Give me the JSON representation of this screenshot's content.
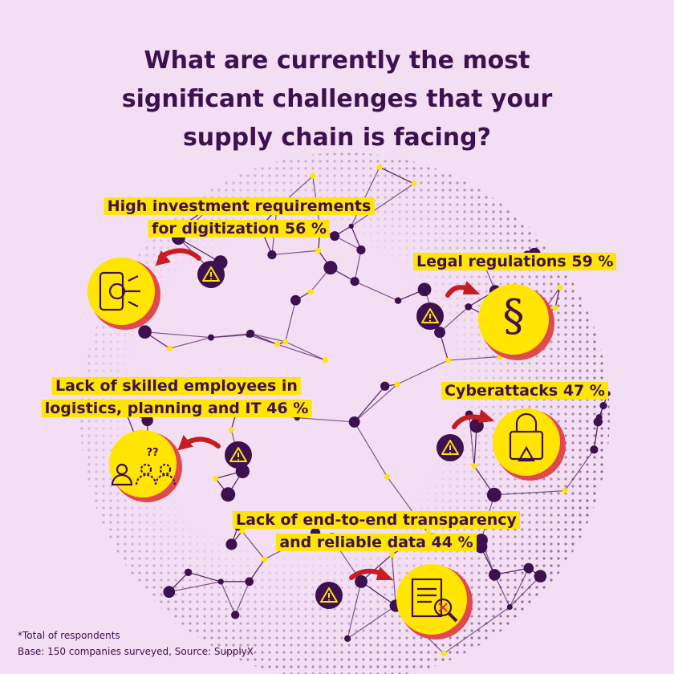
{
  "title": {
    "lines": [
      "What are currently the most",
      "significant challenges that your",
      "supply chain is facing?"
    ]
  },
  "items": [
    {
      "lines": [
        "High investment requirements",
        "for digitization 56 %"
      ]
    },
    {
      "lines": [
        "Legal regulations 59 %"
      ]
    },
    {
      "lines": [
        "Lack of skilled employees in",
        "logistics, planning and IT 46 %"
      ]
    },
    {
      "lines": [
        "Cyberattacks 47 %"
      ]
    },
    {
      "lines": [
        "Lack of end-to-end transparency",
        "and reliable data 44 %"
      ]
    }
  ],
  "footnote": {
    "lines": [
      "*Total of respondents",
      "Base: 150 companies surveyed, Source: SupplyX"
    ]
  }
}
